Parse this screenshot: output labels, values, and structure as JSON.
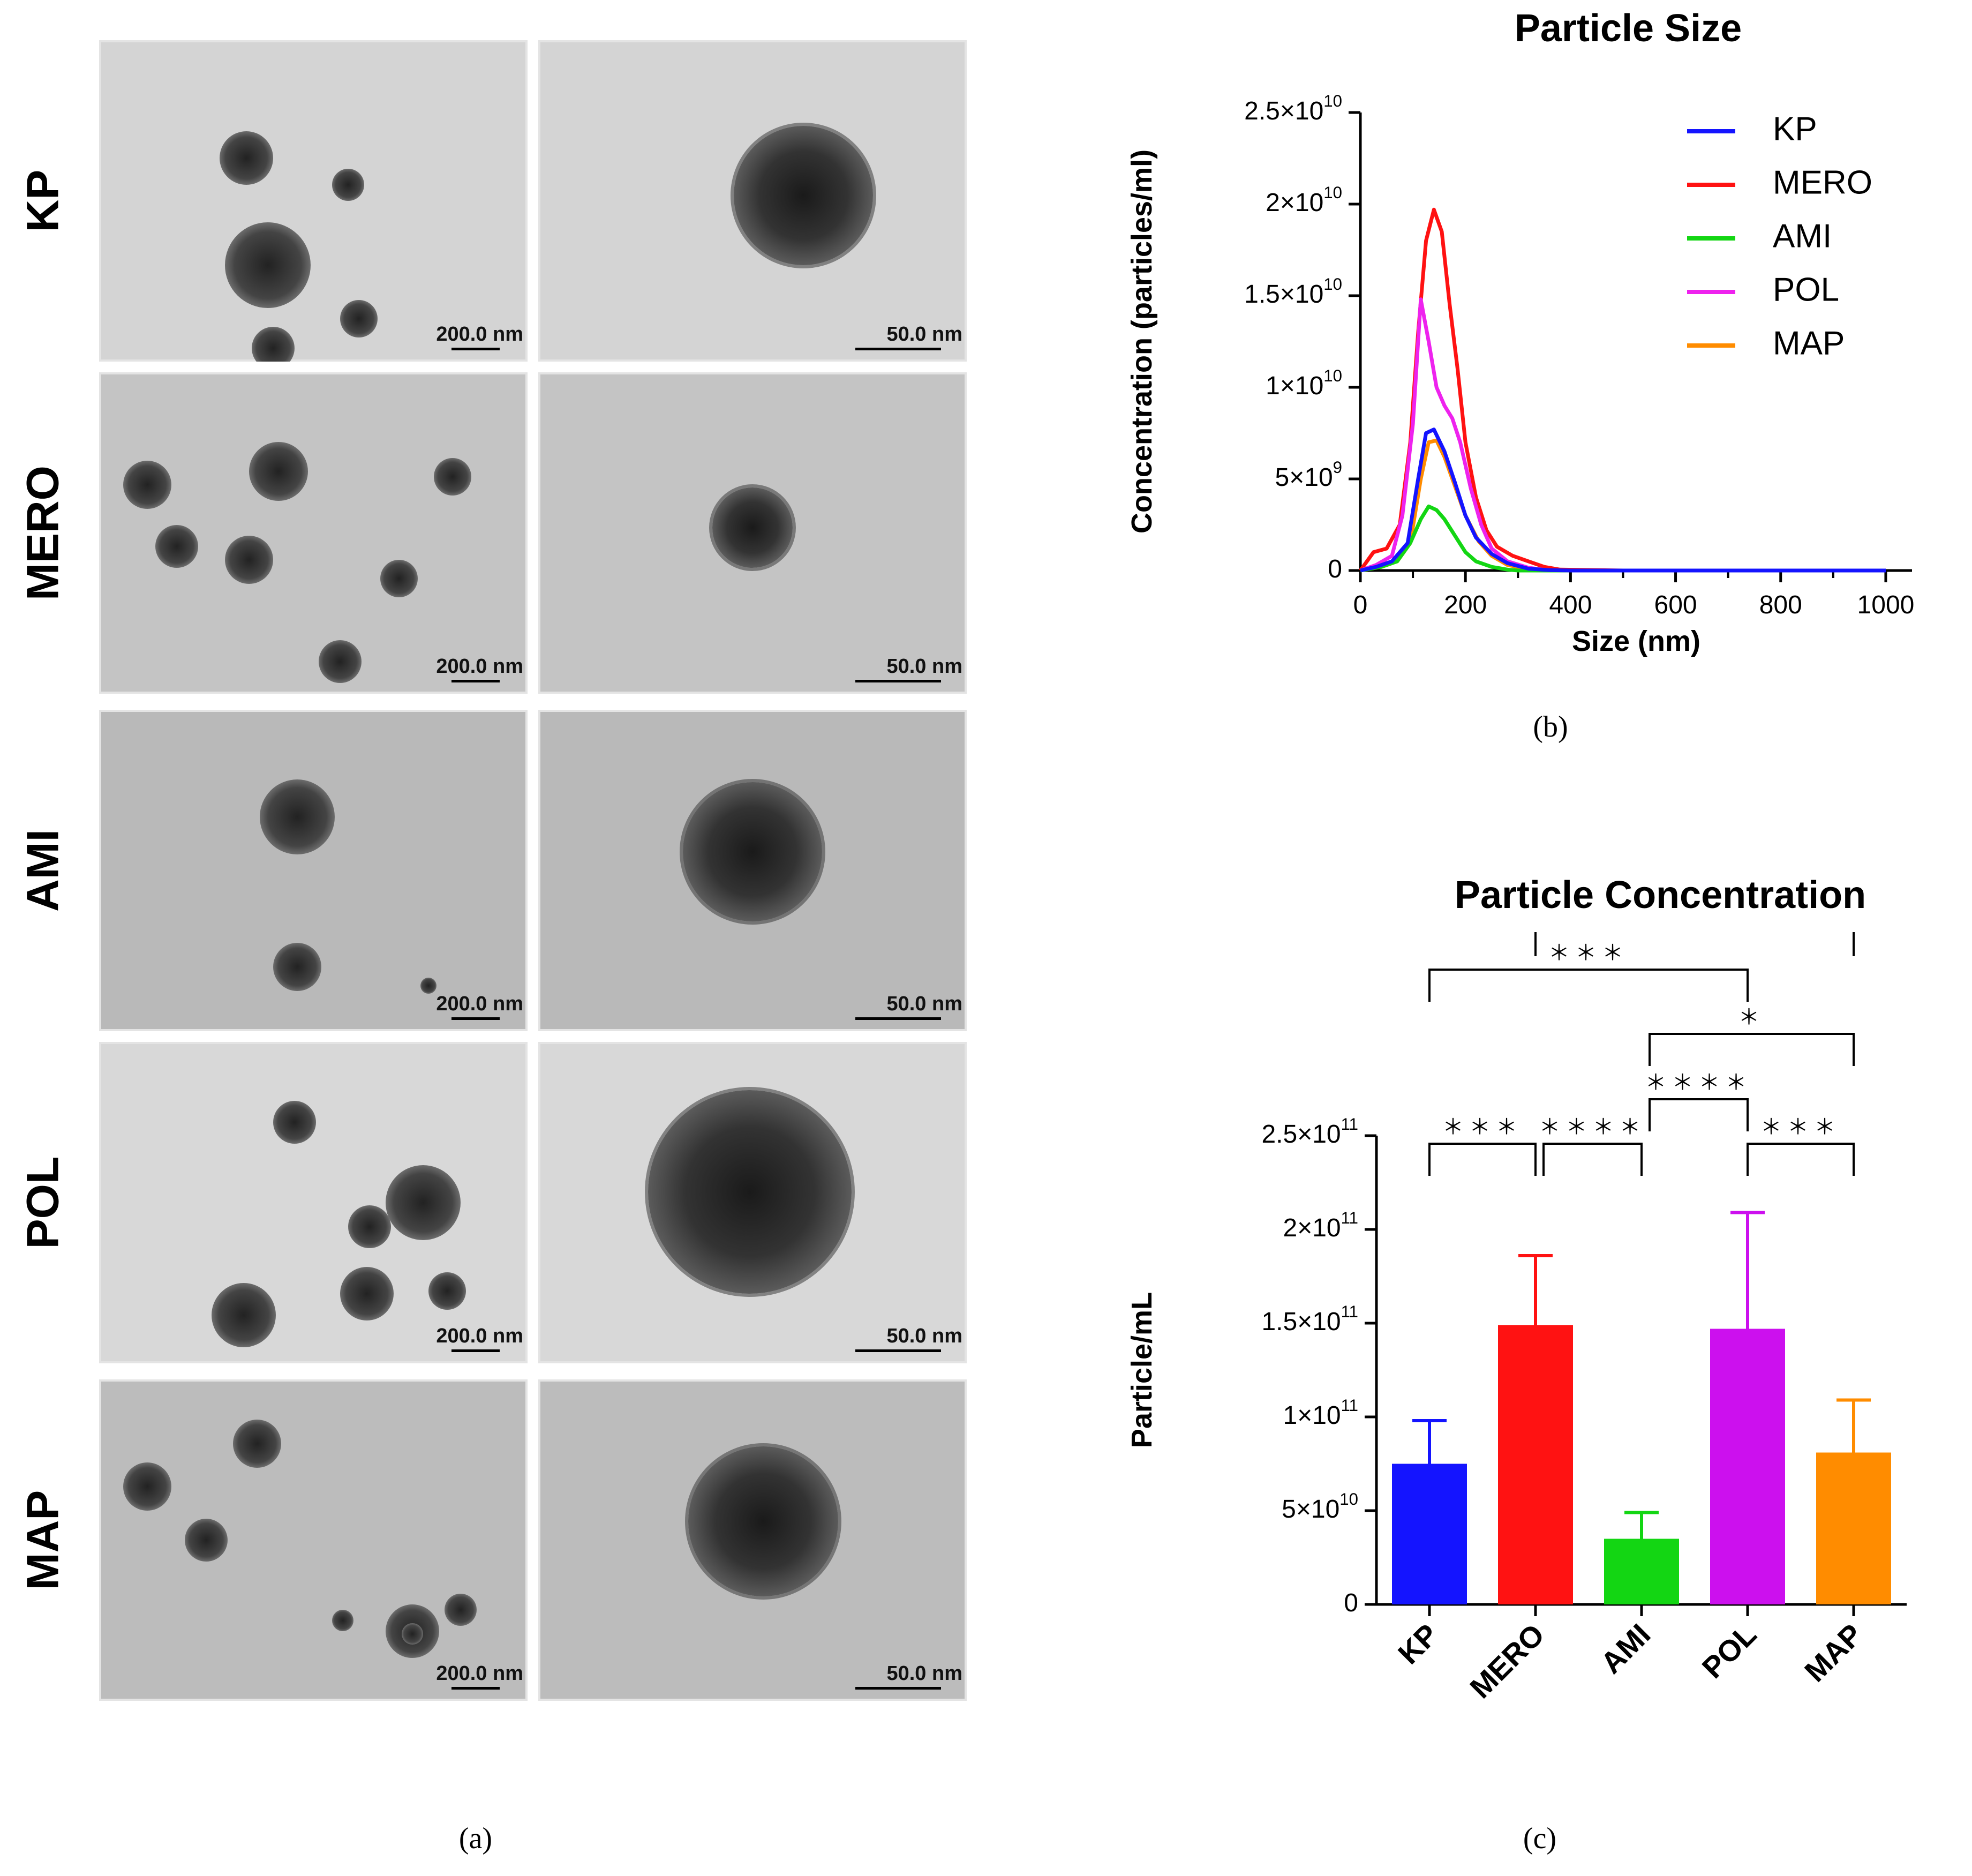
{
  "panel_a": {
    "rows": [
      {
        "label": "KP",
        "scale_left": "200.0 nm",
        "scale_right": "50.0 nm",
        "bg": "#d4d4d4"
      },
      {
        "label": "MERO",
        "scale_left": "200.0 nm",
        "scale_right": "50.0 nm",
        "bg": "#c4c4c4"
      },
      {
        "label": "AMI",
        "scale_left": "200.0 nm",
        "scale_right": "50.0 nm",
        "bg": "#b9b9b9"
      },
      {
        "label": "POL",
        "scale_left": "200.0 nm",
        "scale_right": "50.0 nm",
        "bg": "#d8d8d8"
      },
      {
        "label": "MAP",
        "scale_left": "200.0 nm",
        "scale_right": "50.0 nm",
        "bg": "#bcbcbc"
      }
    ],
    "caption": "(a)"
  },
  "panel_b": {
    "caption": "(b)"
  },
  "panel_c": {
    "caption": "(c)"
  },
  "chart_data": [
    {
      "type": "line",
      "title": "Particle Size",
      "xlabel": "Size (nm)",
      "ylabel": "Concentration (particles/ml)",
      "xlim": [
        0,
        1050
      ],
      "ylim": [
        0,
        25000000000
      ],
      "xticks": [
        0,
        200,
        400,
        600,
        800,
        1000
      ],
      "xtick_labels": [
        "0",
        "200",
        "400",
        "600",
        "800",
        "1000"
      ],
      "yticks": [
        0,
        5000000000,
        10000000000,
        15000000000,
        20000000000,
        25000000000
      ],
      "ytick_labels": [
        {
          "base": "0",
          "exp": ""
        },
        {
          "base": "5×10",
          "exp": "9"
        },
        {
          "base": "1×10",
          "exp": "10"
        },
        {
          "base": "1.5×10",
          "exp": "10"
        },
        {
          "base": "2×10",
          "exp": "10"
        },
        {
          "base": "2.5×10",
          "exp": "10"
        }
      ],
      "legend": "top-right",
      "grid": false,
      "series": [
        {
          "name": "KP",
          "color": "#1414ff",
          "x": [
            0,
            30,
            60,
            90,
            110,
            125,
            140,
            160,
            180,
            200,
            220,
            250,
            280,
            320,
            360,
            400,
            1000
          ],
          "y": [
            0,
            200000000.0,
            500000000.0,
            1500000000.0,
            5000000000.0,
            7500000000.0,
            7700000000.0,
            6500000000.0,
            4800000000.0,
            3000000000.0,
            1800000000.0,
            900000000.0,
            400000000.0,
            100000000.0,
            20000000.0,
            0,
            0
          ]
        },
        {
          "name": "MERO",
          "color": "#ff1212",
          "x": [
            0,
            25,
            50,
            75,
            95,
            110,
            125,
            140,
            155,
            170,
            185,
            200,
            220,
            240,
            260,
            290,
            320,
            350,
            380,
            500,
            1000
          ],
          "y": [
            0,
            1000000000.0,
            1200000000.0,
            2500000000.0,
            7000000000.0,
            13000000000.0,
            18000000000.0,
            19700000000.0,
            18500000000.0,
            14500000000.0,
            11000000000.0,
            7000000000.0,
            4000000000.0,
            2200000000.0,
            1300000000.0,
            800000000.0,
            500000000.0,
            200000000.0,
            50000000.0,
            0,
            0
          ]
        },
        {
          "name": "AMI",
          "color": "#13d613",
          "x": [
            0,
            40,
            70,
            95,
            115,
            130,
            145,
            160,
            180,
            200,
            220,
            250,
            280,
            300,
            1000
          ],
          "y": [
            0,
            200000000.0,
            500000000.0,
            1500000000.0,
            2800000000.0,
            3500000000.0,
            3300000000.0,
            2800000000.0,
            1900000000.0,
            1000000000.0,
            500000000.0,
            200000000.0,
            50000000.0,
            0,
            0
          ]
        },
        {
          "name": "POL",
          "color": "#ee22ee",
          "x": [
            0,
            30,
            60,
            80,
            100,
            115,
            130,
            145,
            160,
            175,
            190,
            210,
            230,
            250,
            280,
            320,
            360,
            1000
          ],
          "y": [
            0,
            300000000.0,
            800000000.0,
            3000000000.0,
            8000000000.0,
            14800000000.0,
            12500000000.0,
            10000000000.0,
            9000000000.0,
            8300000000.0,
            7000000000.0,
            4500000000.0,
            2500000000.0,
            1200000000.0,
            500000000.0,
            150000000.0,
            0,
            0
          ]
        },
        {
          "name": "MAP",
          "color": "#ff8c00",
          "x": [
            0,
            40,
            70,
            95,
            115,
            130,
            145,
            160,
            180,
            200,
            225,
            250,
            280,
            320,
            360,
            1000
          ],
          "y": [
            0,
            200000000.0,
            500000000.0,
            1500000000.0,
            5000000000.0,
            7000000000.0,
            7100000000.0,
            6200000000.0,
            4600000000.0,
            3000000000.0,
            1600000000.0,
            800000000.0,
            300000000.0,
            80000000.0,
            0,
            0
          ]
        }
      ]
    },
    {
      "type": "bar",
      "title": "Particle Concentration",
      "xlabel": "",
      "ylabel": "Particle/mL",
      "ylim": [
        0,
        250000000000
      ],
      "yticks": [
        0,
        50000000000,
        100000000000,
        150000000000,
        200000000000,
        250000000000
      ],
      "ytick_labels": [
        {
          "base": "0",
          "exp": ""
        },
        {
          "base": "5×10",
          "exp": "10"
        },
        {
          "base": "1×10",
          "exp": "11"
        },
        {
          "base": "1.5×10",
          "exp": "11"
        },
        {
          "base": "2×10",
          "exp": "11"
        },
        {
          "base": "2.5×10",
          "exp": "11"
        }
      ],
      "categories": [
        "KP",
        "MERO",
        "AMI",
        "POL",
        "MAP"
      ],
      "values": [
        75000000000,
        149000000000,
        35000000000,
        147000000000,
        81000000000
      ],
      "errors": [
        23000000000,
        37000000000,
        14000000000,
        62000000000,
        28000000000
      ],
      "colors": [
        "#1414ff",
        "#ff1212",
        "#13d613",
        "#cc10ee",
        "#ff8c00"
      ],
      "significance": [
        {
          "from": 0,
          "to": 1,
          "label": "＊＊＊"
        },
        {
          "from": 1,
          "to": 2,
          "label": "＊＊＊＊"
        },
        {
          "from": 3,
          "to": 4,
          "label": "＊＊＊"
        },
        {
          "from": 2,
          "to": 3,
          "label": "＊＊＊＊"
        },
        {
          "from": 2,
          "to": 4,
          "label": "＊"
        },
        {
          "from": 0,
          "to": 3,
          "label": "＊＊＊"
        },
        {
          "from": 1,
          "to": 4,
          "label": "＊＊＊"
        }
      ]
    }
  ]
}
